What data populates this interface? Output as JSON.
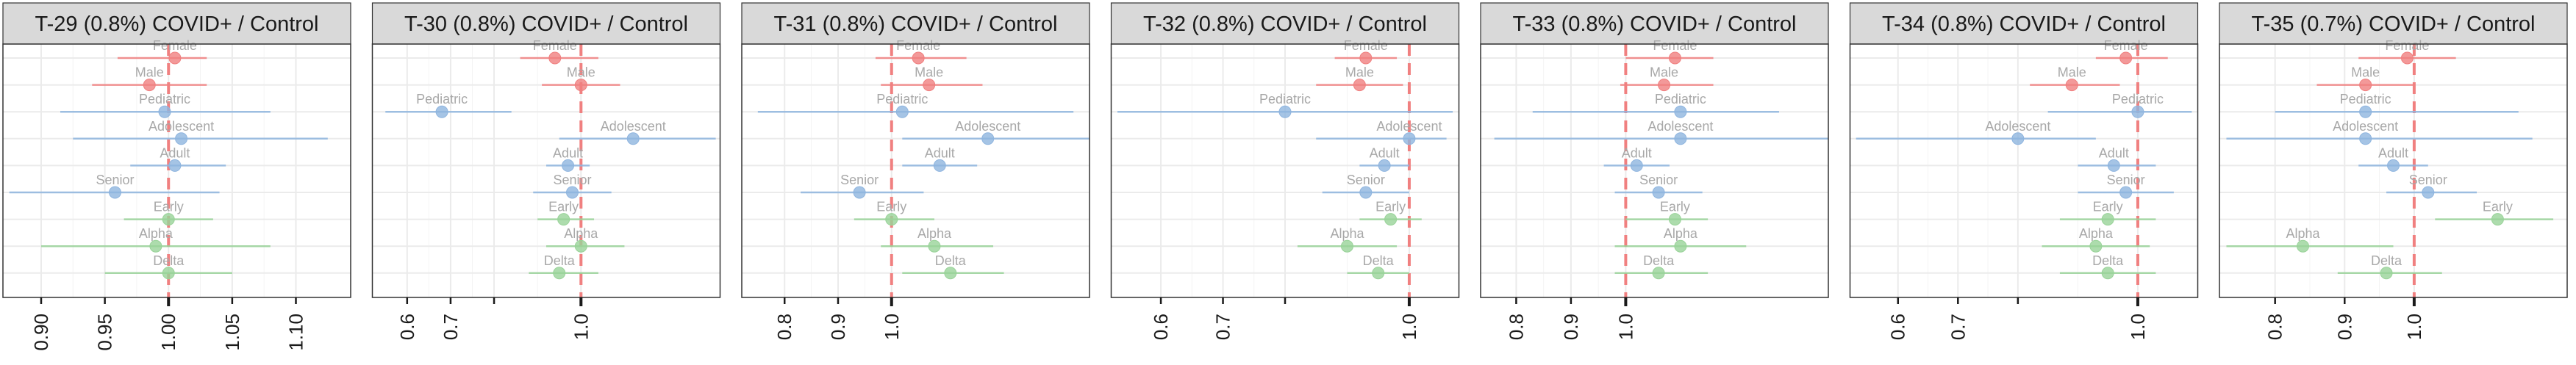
{
  "colors": {
    "strip": "#d9d9d9",
    "panel_border": "#333333",
    "grid_major": "#ebebeb",
    "grid_minor": "#f4f4f4",
    "reference_line": "#f08080",
    "label": "#a8a8a8",
    "sex": "#f08080",
    "age": "#8fb5df",
    "variant": "#99d399"
  },
  "chart_data": [
    {
      "type": "forest",
      "title": "T-29 (0.8%) COVID+ / Control",
      "xlim": [
        0.87,
        1.143
      ],
      "ticks": [
        0.9,
        0.95,
        1.0,
        1.05,
        1.1
      ],
      "tick_labels": [
        "0.90",
        "0.95",
        "1.00",
        "1.05",
        "1.10"
      ],
      "reference": 1.0,
      "rows": [
        {
          "label": "Female",
          "group": "sex",
          "est": 1.005,
          "lo": 0.96,
          "hi": 1.03
        },
        {
          "label": "Male",
          "group": "sex",
          "est": 0.985,
          "lo": 0.94,
          "hi": 1.03
        },
        {
          "label": "Pediatric",
          "group": "age",
          "est": 0.997,
          "lo": 0.915,
          "hi": 1.08
        },
        {
          "label": "Adolescent",
          "group": "age",
          "est": 1.01,
          "lo": 0.925,
          "hi": 1.125
        },
        {
          "label": "Adult",
          "group": "age",
          "est": 1.005,
          "lo": 0.97,
          "hi": 1.045
        },
        {
          "label": "Senior",
          "group": "age",
          "est": 0.958,
          "lo": 0.875,
          "hi": 1.04
        },
        {
          "label": "Early",
          "group": "variant",
          "est": 1.0,
          "lo": 0.965,
          "hi": 1.035
        },
        {
          "label": "Alpha",
          "group": "variant",
          "est": 0.99,
          "lo": 0.9,
          "hi": 1.08
        },
        {
          "label": "Delta",
          "group": "variant",
          "est": 1.0,
          "lo": 0.95,
          "hi": 1.05
        }
      ]
    },
    {
      "type": "forest",
      "title": "T-30 (0.8%) COVID+ / Control",
      "xlim": [
        0.52,
        1.32
      ],
      "ticks": [
        0.6,
        0.7,
        0.8,
        1.0
      ],
      "tick_labels": [
        "0.6",
        "0.7",
        "",
        "1.0"
      ],
      "reference": 1.0,
      "rows": [
        {
          "label": "Female",
          "group": "sex",
          "est": 0.94,
          "lo": 0.86,
          "hi": 1.04
        },
        {
          "label": "Male",
          "group": "sex",
          "est": 1.0,
          "lo": 0.91,
          "hi": 1.09
        },
        {
          "label": "Pediatric",
          "group": "age",
          "est": 0.68,
          "lo": 0.55,
          "hi": 0.84
        },
        {
          "label": "Adolescent",
          "group": "age",
          "est": 1.12,
          "lo": 0.95,
          "hi": 1.31
        },
        {
          "label": "Adult",
          "group": "age",
          "est": 0.97,
          "lo": 0.92,
          "hi": 1.02
        },
        {
          "label": "Senior",
          "group": "age",
          "est": 0.98,
          "lo": 0.89,
          "hi": 1.07
        },
        {
          "label": "Early",
          "group": "variant",
          "est": 0.96,
          "lo": 0.9,
          "hi": 1.03
        },
        {
          "label": "Alpha",
          "group": "variant",
          "est": 1.0,
          "lo": 0.92,
          "hi": 1.1
        },
        {
          "label": "Delta",
          "group": "variant",
          "est": 0.95,
          "lo": 0.88,
          "hi": 1.04
        }
      ]
    },
    {
      "type": "forest",
      "title": "T-31 (0.8%) COVID+ / Control",
      "xlim": [
        0.72,
        1.37
      ],
      "ticks": [
        0.8,
        0.9,
        1.0
      ],
      "tick_labels": [
        "0.8",
        "0.9",
        "1.0"
      ],
      "reference": 1.0,
      "rows": [
        {
          "label": "Female",
          "group": "sex",
          "est": 1.05,
          "lo": 0.97,
          "hi": 1.14
        },
        {
          "label": "Male",
          "group": "sex",
          "est": 1.07,
          "lo": 0.98,
          "hi": 1.17
        },
        {
          "label": "Pediatric",
          "group": "age",
          "est": 1.02,
          "lo": 0.75,
          "hi": 1.34
        },
        {
          "label": "Adolescent",
          "group": "age",
          "est": 1.18,
          "lo": 1.02,
          "hi": 1.37
        },
        {
          "label": "Adult",
          "group": "age",
          "est": 1.09,
          "lo": 1.02,
          "hi": 1.16
        },
        {
          "label": "Senior",
          "group": "age",
          "est": 0.94,
          "lo": 0.83,
          "hi": 1.06
        },
        {
          "label": "Early",
          "group": "variant",
          "est": 1.0,
          "lo": 0.93,
          "hi": 1.08
        },
        {
          "label": "Alpha",
          "group": "variant",
          "est": 1.08,
          "lo": 0.98,
          "hi": 1.19
        },
        {
          "label": "Delta",
          "group": "variant",
          "est": 1.11,
          "lo": 1.02,
          "hi": 1.21
        }
      ]
    },
    {
      "type": "forest",
      "title": "T-32 (0.8%) COVID+ / Control",
      "xlim": [
        0.52,
        1.08
      ],
      "ticks": [
        0.6,
        0.7,
        0.8,
        1.0
      ],
      "tick_labels": [
        "0.6",
        "0.7",
        "",
        "1.0"
      ],
      "reference": 1.0,
      "rows": [
        {
          "label": "Female",
          "group": "sex",
          "est": 0.93,
          "lo": 0.88,
          "hi": 0.98
        },
        {
          "label": "Male",
          "group": "sex",
          "est": 0.92,
          "lo": 0.85,
          "hi": 0.99
        },
        {
          "label": "Pediatric",
          "group": "age",
          "est": 0.8,
          "lo": 0.53,
          "hi": 1.07
        },
        {
          "label": "Adolescent",
          "group": "age",
          "est": 1.0,
          "lo": 0.85,
          "hi": 1.06
        },
        {
          "label": "Adult",
          "group": "age",
          "est": 0.96,
          "lo": 0.92,
          "hi": 1.0
        },
        {
          "label": "Senior",
          "group": "age",
          "est": 0.93,
          "lo": 0.86,
          "hi": 1.0
        },
        {
          "label": "Early",
          "group": "variant",
          "est": 0.97,
          "lo": 0.92,
          "hi": 1.02
        },
        {
          "label": "Alpha",
          "group": "variant",
          "est": 0.9,
          "lo": 0.82,
          "hi": 0.98
        },
        {
          "label": "Delta",
          "group": "variant",
          "est": 0.95,
          "lo": 0.9,
          "hi": 1.0
        }
      ]
    },
    {
      "type": "forest",
      "title": "T-33 (0.8%) COVID+ / Control",
      "xlim": [
        0.735,
        1.37
      ],
      "ticks": [
        0.8,
        0.9,
        1.0
      ],
      "tick_labels": [
        "0.8",
        "0.9",
        "1.0"
      ],
      "reference": 1.0,
      "rows": [
        {
          "label": "Female",
          "group": "sex",
          "est": 1.09,
          "lo": 1.0,
          "hi": 1.16
        },
        {
          "label": "Male",
          "group": "sex",
          "est": 1.07,
          "lo": 0.99,
          "hi": 1.16
        },
        {
          "label": "Pediatric",
          "group": "age",
          "est": 1.1,
          "lo": 0.83,
          "hi": 1.28
        },
        {
          "label": "Adolescent",
          "group": "age",
          "est": 1.1,
          "lo": 0.76,
          "hi": 1.37
        },
        {
          "label": "Adult",
          "group": "age",
          "est": 1.02,
          "lo": 0.96,
          "hi": 1.08
        },
        {
          "label": "Senior",
          "group": "age",
          "est": 1.06,
          "lo": 0.98,
          "hi": 1.14
        },
        {
          "label": "Early",
          "group": "variant",
          "est": 1.09,
          "lo": 1.0,
          "hi": 1.15
        },
        {
          "label": "Alpha",
          "group": "variant",
          "est": 1.1,
          "lo": 0.98,
          "hi": 1.22
        },
        {
          "label": "Delta",
          "group": "variant",
          "est": 1.06,
          "lo": 0.98,
          "hi": 1.15
        }
      ]
    },
    {
      "type": "forest",
      "title": "T-34 (0.8%) COVID+ / Control",
      "xlim": [
        0.52,
        1.1
      ],
      "ticks": [
        0.6,
        0.7,
        0.8,
        1.0
      ],
      "tick_labels": [
        "0.6",
        "0.7",
        "",
        "1.0"
      ],
      "reference": 1.0,
      "rows": [
        {
          "label": "Female",
          "group": "sex",
          "est": 0.98,
          "lo": 0.93,
          "hi": 1.05
        },
        {
          "label": "Male",
          "group": "sex",
          "est": 0.89,
          "lo": 0.82,
          "hi": 0.97
        },
        {
          "label": "Pediatric",
          "group": "age",
          "est": 1.0,
          "lo": 0.85,
          "hi": 1.09
        },
        {
          "label": "Adolescent",
          "group": "age",
          "est": 0.8,
          "lo": 0.53,
          "hi": 0.93
        },
        {
          "label": "Adult",
          "group": "age",
          "est": 0.96,
          "lo": 0.9,
          "hi": 1.03
        },
        {
          "label": "Senior",
          "group": "age",
          "est": 0.98,
          "lo": 0.9,
          "hi": 1.06
        },
        {
          "label": "Early",
          "group": "variant",
          "est": 0.95,
          "lo": 0.87,
          "hi": 1.03
        },
        {
          "label": "Alpha",
          "group": "variant",
          "est": 0.93,
          "lo": 0.84,
          "hi": 1.02
        },
        {
          "label": "Delta",
          "group": "variant",
          "est": 0.95,
          "lo": 0.87,
          "hi": 1.03
        }
      ]
    },
    {
      "type": "forest",
      "title": "T-35 (0.7%) COVID+ / Control",
      "xlim": [
        0.72,
        1.22
      ],
      "ticks": [
        0.8,
        0.9,
        1.0
      ],
      "tick_labels": [
        "0.8",
        "0.9",
        "1.0"
      ],
      "reference": 1.0,
      "rows": [
        {
          "label": "Female",
          "group": "sex",
          "est": 0.99,
          "lo": 0.92,
          "hi": 1.06
        },
        {
          "label": "Male",
          "group": "sex",
          "est": 0.93,
          "lo": 0.86,
          "hi": 1.0
        },
        {
          "label": "Pediatric",
          "group": "age",
          "est": 0.93,
          "lo": 0.8,
          "hi": 1.15
        },
        {
          "label": "Adolescent",
          "group": "age",
          "est": 0.93,
          "lo": 0.73,
          "hi": 1.17
        },
        {
          "label": "Adult",
          "group": "age",
          "est": 0.97,
          "lo": 0.92,
          "hi": 1.02
        },
        {
          "label": "Senior",
          "group": "age",
          "est": 1.02,
          "lo": 0.96,
          "hi": 1.09
        },
        {
          "label": "Early",
          "group": "variant",
          "est": 1.12,
          "lo": 1.03,
          "hi": 1.2
        },
        {
          "label": "Alpha",
          "group": "variant",
          "est": 0.84,
          "lo": 0.73,
          "hi": 0.97
        },
        {
          "label": "Delta",
          "group": "variant",
          "est": 0.96,
          "lo": 0.89,
          "hi": 1.04
        }
      ]
    }
  ]
}
